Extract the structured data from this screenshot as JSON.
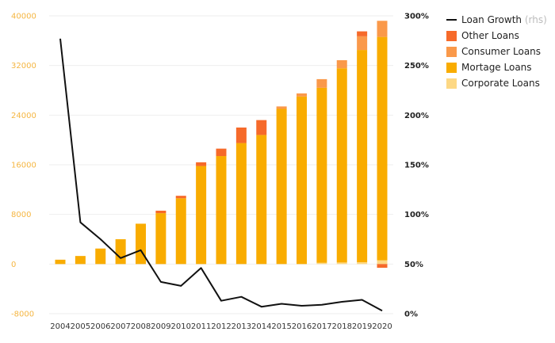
{
  "chart_data": {
    "type": "bar",
    "categories": [
      "2004",
      "2005",
      "2006",
      "2007",
      "2008",
      "2009",
      "2010",
      "2011",
      "2012",
      "2013",
      "2014",
      "2015",
      "2016",
      "2017",
      "2018",
      "2019",
      "2020"
    ],
    "ylim": [
      -8000,
      40000
    ],
    "y_ticks": [
      "-8000",
      "0",
      "8000",
      "16000",
      "24000",
      "32000",
      "40000"
    ],
    "y2lim": [
      0,
      300
    ],
    "y2_ticks": [
      "0%",
      "50%",
      "100%",
      "150%",
      "200%",
      "250%",
      "300%"
    ],
    "stacked": true,
    "series": [
      {
        "name": "Corporate Loans",
        "color": "#fdd884",
        "values": [
          0,
          0,
          0,
          0,
          0,
          0,
          0,
          0,
          0,
          0,
          0,
          0,
          0,
          200,
          250,
          300,
          600
        ]
      },
      {
        "name": "Mortage Loans",
        "color": "#f9ac00",
        "values": [
          700,
          1300,
          2500,
          4000,
          6500,
          8200,
          10600,
          15800,
          17400,
          19500,
          20800,
          25000,
          27000,
          28200,
          31300,
          34200,
          36000
        ]
      },
      {
        "name": "Consumer Loans",
        "color": "#fa994a",
        "values": [
          0,
          0,
          0,
          0,
          0,
          0,
          0,
          0,
          0,
          0,
          0,
          400,
          500,
          1400,
          1300,
          2200,
          2600
        ]
      },
      {
        "name": "Other Loans",
        "color": "#f66a2a",
        "values": [
          0,
          0,
          0,
          0,
          0,
          400,
          400,
          600,
          1200,
          2500,
          2400,
          0,
          0,
          0,
          0,
          800,
          -600
        ]
      },
      {
        "name": "Loan Growth",
        "note": "(rhs)",
        "type": "line",
        "axis": "right",
        "color": "#111111",
        "values": [
          277,
          92,
          75,
          56,
          64,
          32,
          28,
          46,
          13,
          17,
          7,
          10,
          8,
          9,
          12,
          14,
          3
        ]
      }
    ],
    "legend_position": "right",
    "grid": true
  }
}
